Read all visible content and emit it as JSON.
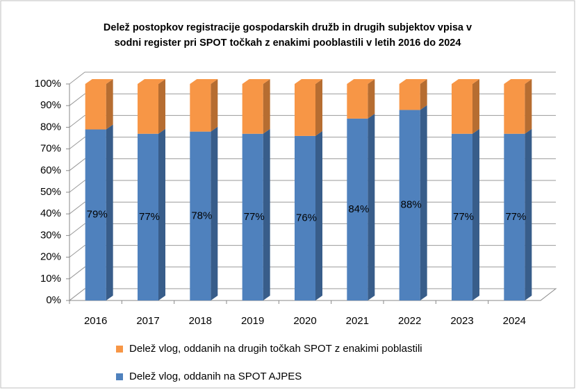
{
  "chart_data": {
    "type": "bar3d_stacked",
    "title": [
      "Delež postopkov registracije gospodarskih družb in drugih subjektov vpisa v",
      "sodni register pri SPOT točkah z enakimi pooblastili v letih 2016 do 2024"
    ],
    "categories": [
      "2016",
      "2017",
      "2018",
      "2019",
      "2020",
      "2021",
      "2022",
      "2023",
      "2024"
    ],
    "series": [
      {
        "name": "Delež vlog, oddanih na SPOT AJPES",
        "color": "#4f81bd",
        "side_color": "#385d8a",
        "values": [
          79,
          77,
          78,
          77,
          76,
          84,
          88,
          77,
          77
        ],
        "value_labels": [
          "79%",
          "77%",
          "78%",
          "77%",
          "76%",
          "84%",
          "88%",
          "77%",
          "77%"
        ]
      },
      {
        "name": "Delež vlog, oddanih na drugih točkah SPOT z enakimi poblastili",
        "color": "#f79646",
        "side_color": "#b66d31",
        "values": [
          21,
          23,
          22,
          23,
          24,
          16,
          12,
          23,
          23
        ]
      }
    ],
    "ylim": [
      0,
      100
    ],
    "yticks": [
      {
        "value": 0,
        "label": "0%"
      },
      {
        "value": 10,
        "label": "10%"
      },
      {
        "value": 20,
        "label": "20%"
      },
      {
        "value": 30,
        "label": "30%"
      },
      {
        "value": 40,
        "label": "40%"
      },
      {
        "value": 50,
        "label": "50%"
      },
      {
        "value": 60,
        "label": "60%"
      },
      {
        "value": 70,
        "label": "70%"
      },
      {
        "value": 80,
        "label": "80%"
      },
      {
        "value": 90,
        "label": "90%"
      },
      {
        "value": 100,
        "label": "100%"
      }
    ],
    "grid": true,
    "legend": "bottom"
  }
}
